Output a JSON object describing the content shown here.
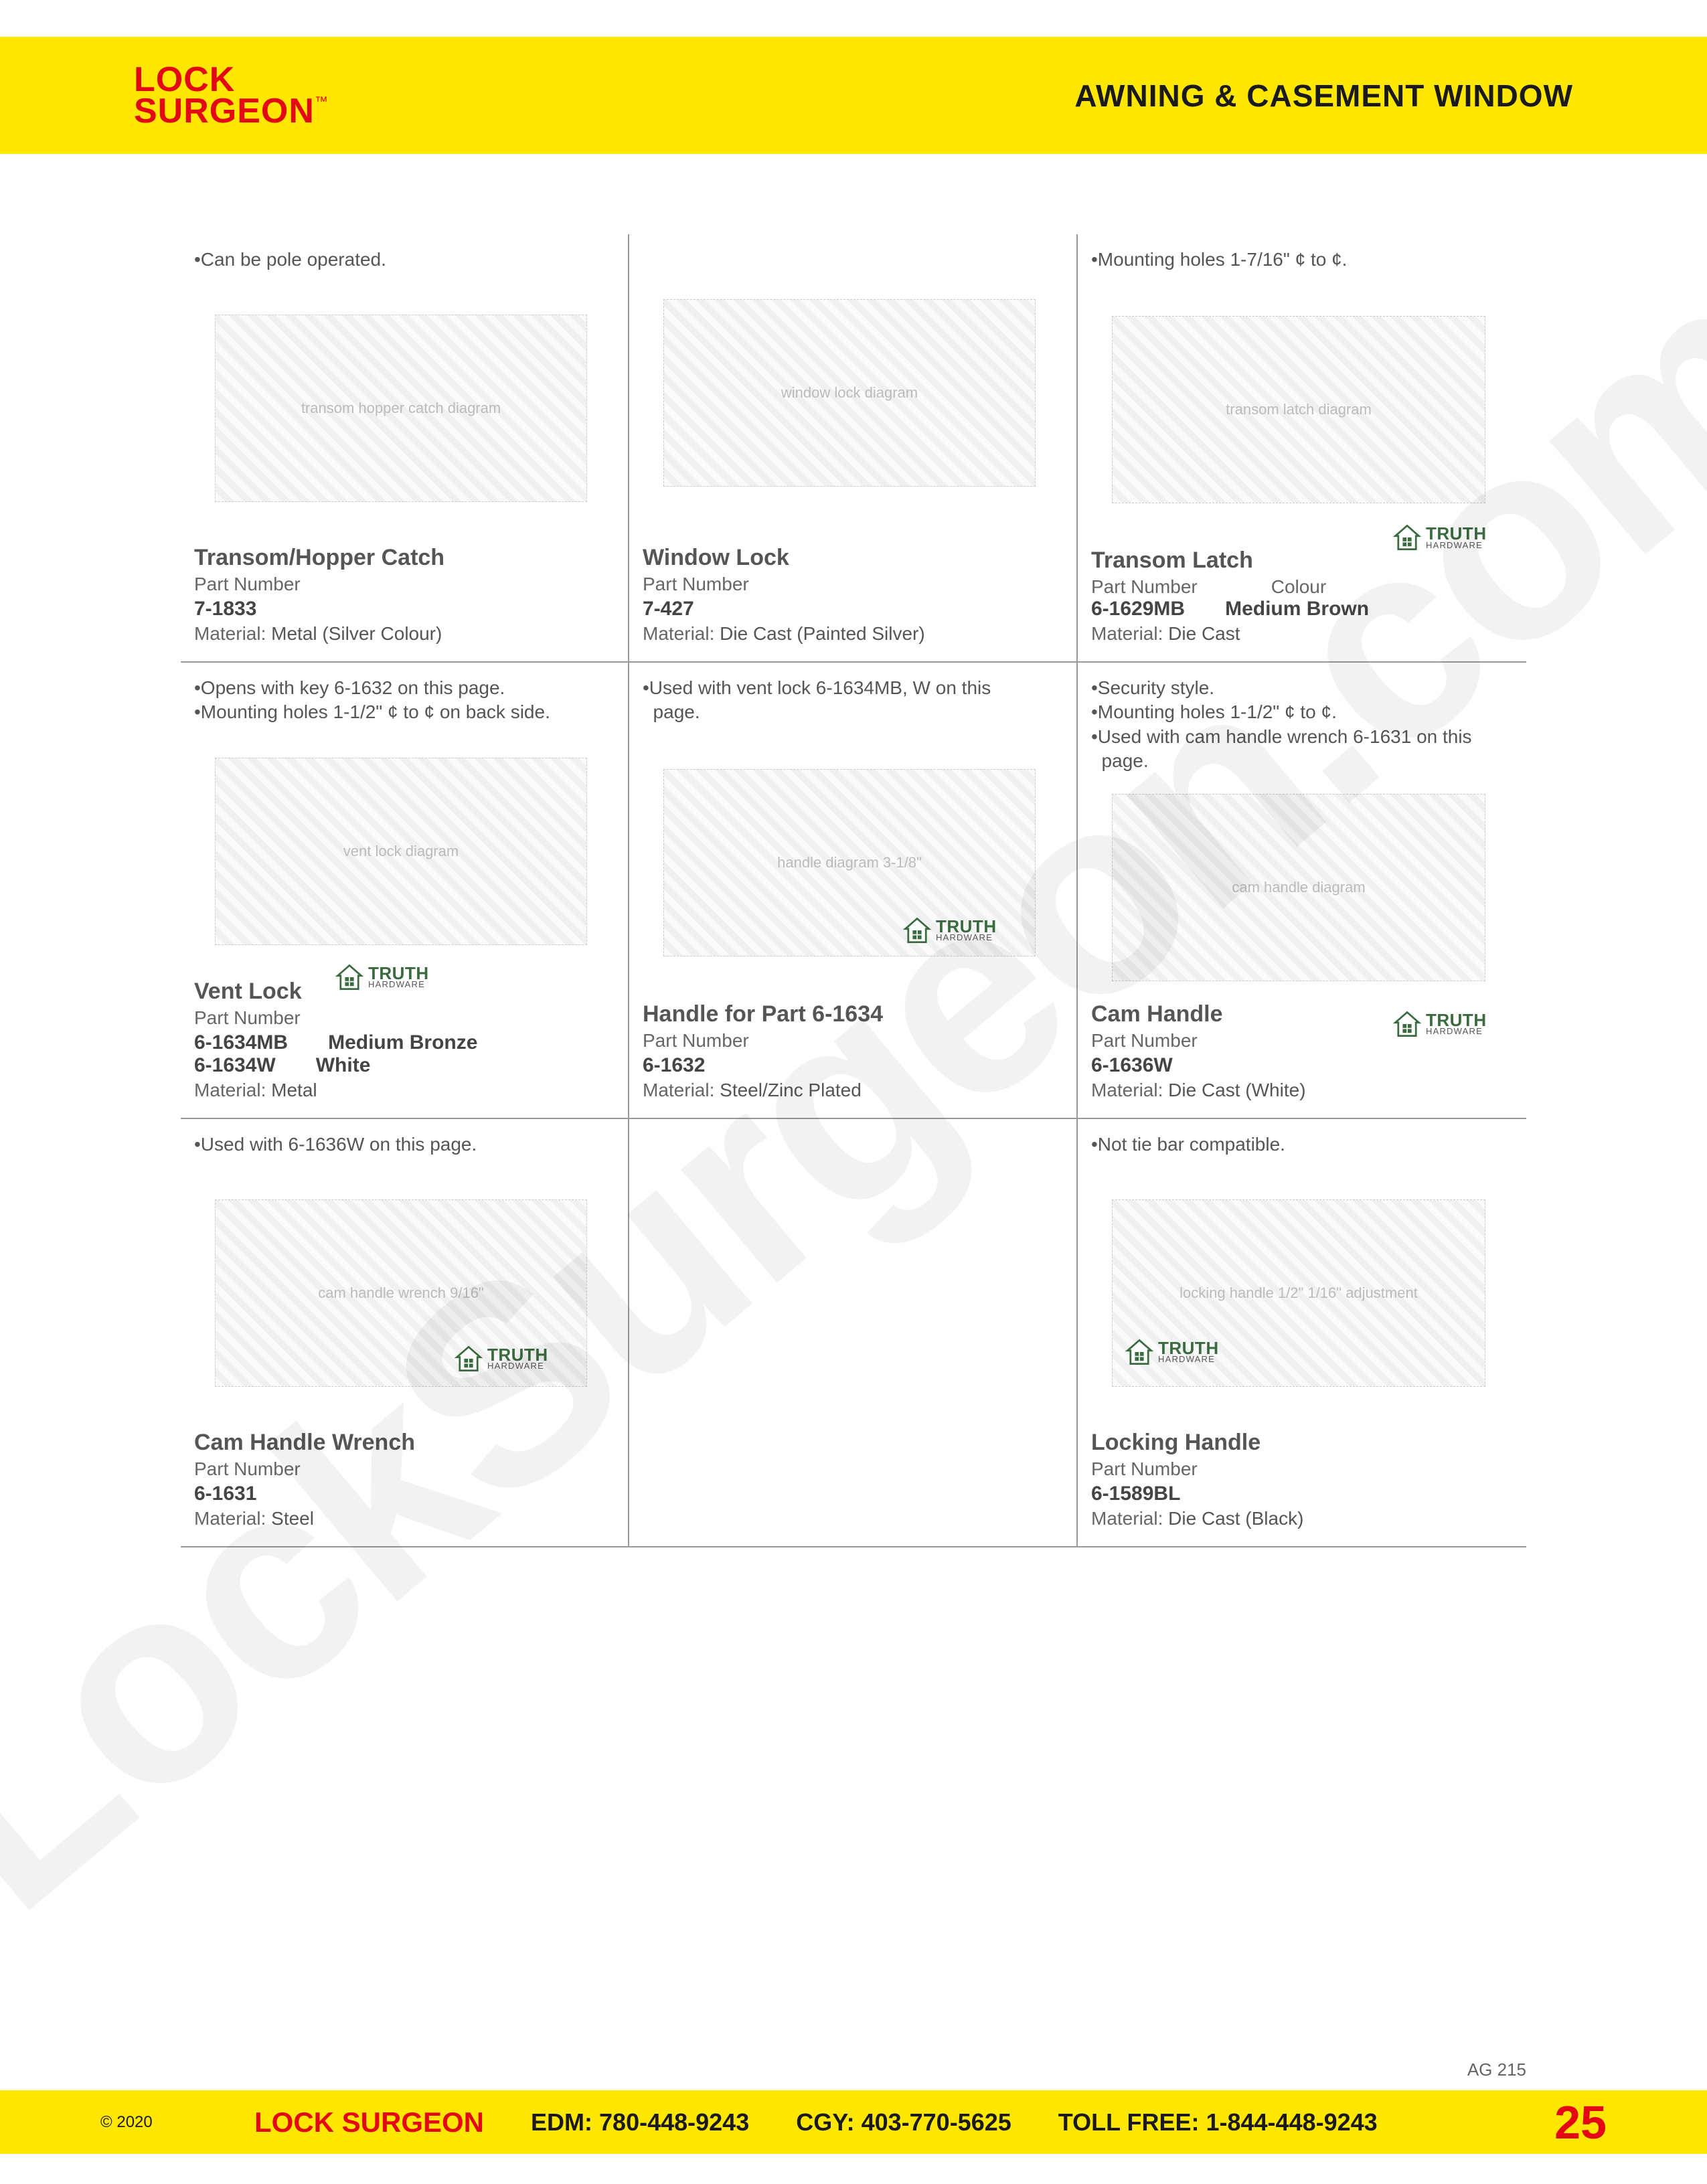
{
  "brand": {
    "line1": "LOCK",
    "line2": "SURGEON",
    "tm": "™"
  },
  "header": {
    "title": "AWNING & CASEMENT WINDOW"
  },
  "watermark": "LockSurgeon.com",
  "truth_logo": {
    "main": "TRUTH",
    "sub": "HARDWARE"
  },
  "products": [
    {
      "notes": [
        "•Can be pole operated."
      ],
      "title": "Transom/Hopper Catch",
      "part_label": "Part Number",
      "parts": [
        {
          "num": "7-1833"
        }
      ],
      "material_label": "Material:",
      "material": "Metal (Silver Colour)",
      "truth": false,
      "img_alt": "transom hopper catch diagram"
    },
    {
      "notes": [],
      "title": "Window Lock",
      "part_label": "Part Number",
      "parts": [
        {
          "num": "7-427"
        }
      ],
      "material_label": "Material:",
      "material": "Die Cast (Painted Silver)",
      "truth": false,
      "img_alt": "window lock diagram"
    },
    {
      "notes": [
        "•Mounting holes 1-7/16\" ¢ to ¢."
      ],
      "title": "Transom Latch",
      "part_label": "Part Number",
      "colour_label": "Colour",
      "parts": [
        {
          "num": "6-1629MB",
          "colour": "Medium Brown"
        }
      ],
      "material_label": "Material:",
      "material": "Die Cast",
      "truth": true,
      "truth_pos": "title",
      "img_alt": "transom latch diagram"
    },
    {
      "notes": [
        "•Opens with key 6-1632 on this page.",
        "•Mounting holes 1-1/2\" ¢ to ¢ on back side."
      ],
      "title": "Vent Lock",
      "part_label": "Part Number",
      "parts": [
        {
          "num": "6-1634MB",
          "colour": "Medium Bronze"
        },
        {
          "num": "6-1634W",
          "colour": "White"
        }
      ],
      "material_label": "Material:",
      "material": "Metal",
      "truth": true,
      "truth_pos": "mid",
      "img_alt": "vent lock diagram"
    },
    {
      "notes": [
        "•Used with vent lock 6-1634MB, W on this",
        "  page."
      ],
      "title": "Handle for Part 6-1634",
      "part_label": "Part Number",
      "parts": [
        {
          "num": "6-1632"
        }
      ],
      "material_label": "Material:",
      "material": "Steel/Zinc Plated",
      "truth": true,
      "truth_pos": "img",
      "img_alt": "handle diagram 3-1/8\""
    },
    {
      "notes": [
        "•Security style.",
        "•Mounting holes 1-1/2\" ¢ to ¢.",
        "•Used with cam handle wrench 6-1631 on this",
        "  page."
      ],
      "title": "Cam Handle",
      "part_label": "Part Number",
      "parts": [
        {
          "num": "6-1636W"
        }
      ],
      "material_label": "Material:",
      "material": "Die Cast (White)",
      "truth": true,
      "truth_pos": "right",
      "img_alt": "cam handle diagram"
    },
    {
      "notes": [
        "•Used with 6-1636W on this page."
      ],
      "title": "Cam Handle Wrench",
      "part_label": "Part Number",
      "parts": [
        {
          "num": "6-1631"
        }
      ],
      "material_label": "Material:",
      "material": "Steel",
      "truth": true,
      "truth_pos": "img",
      "img_alt": "cam handle wrench 9/16\""
    },
    {
      "empty": true
    },
    {
      "notes": [
        "•Not tie bar compatible."
      ],
      "title": "Locking Handle",
      "part_label": "Part Number",
      "parts": [
        {
          "num": "6-1589BL"
        }
      ],
      "material_label": "Material:",
      "material": "Die Cast (Black)",
      "truth": true,
      "truth_pos": "img-left",
      "img_alt": "locking handle 1/2\" 1/16\" adjustment"
    }
  ],
  "footer": {
    "copyright": "© 2020",
    "brand": "LOCK SURGEON",
    "edm_label": "EDM:",
    "edm": "780-448-9243",
    "cgy_label": "CGY:",
    "cgy": "403-770-5625",
    "toll_label": "TOLL FREE:",
    "toll": "1-844-448-9243",
    "page": "25",
    "ag": "AG 215"
  }
}
